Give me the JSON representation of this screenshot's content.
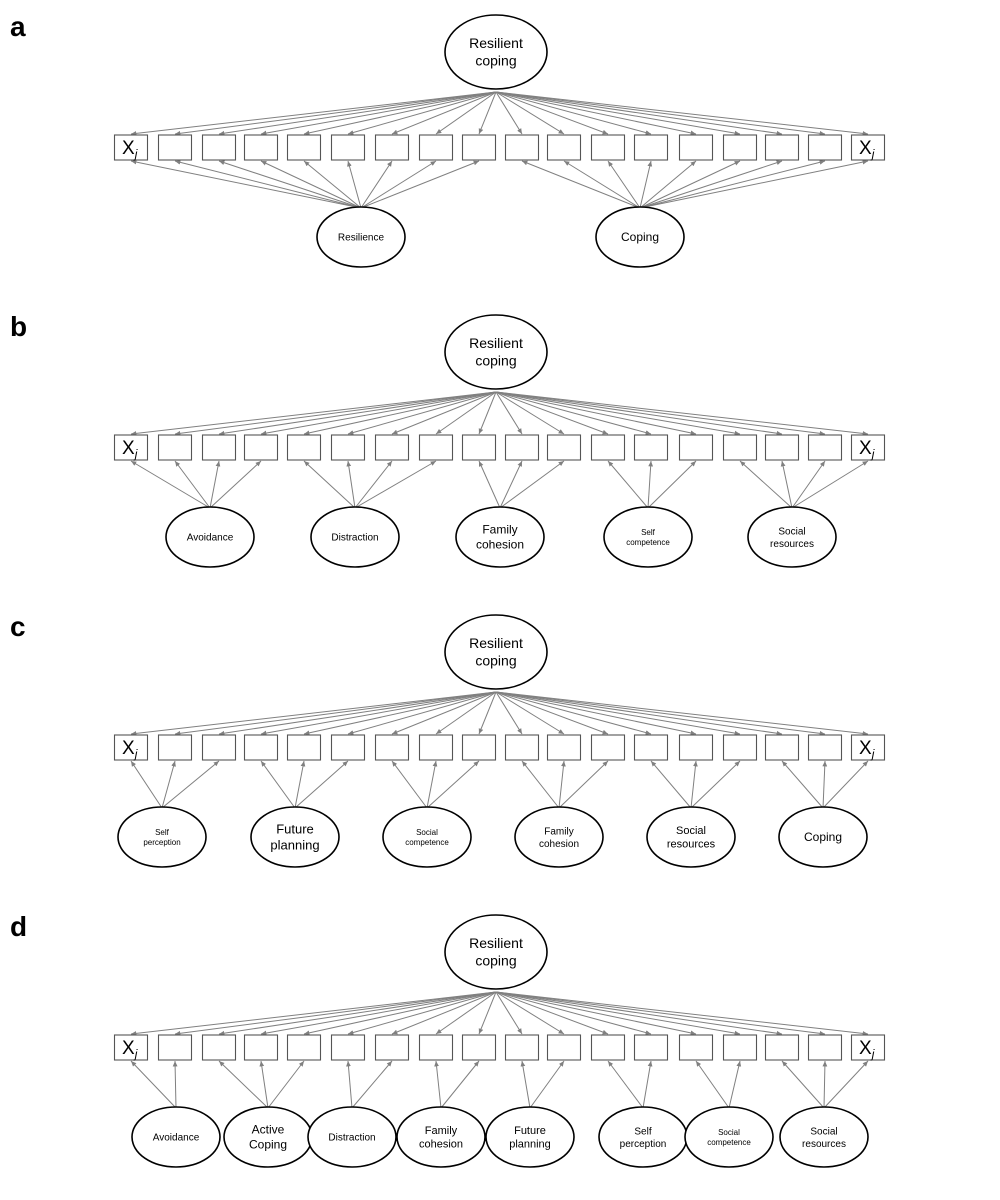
{
  "panels": [
    {
      "label": "a",
      "top": {
        "lines": [
          "Resilient",
          "coping"
        ]
      },
      "indicator_label": "X",
      "indicator_subscript": "j",
      "factors": [
        {
          "lines": [
            "Resilience"
          ],
          "items": [
            0,
            1,
            2,
            3,
            4,
            5,
            6,
            7,
            8
          ]
        },
        {
          "lines": [
            "Coping"
          ],
          "items": [
            9,
            10,
            11,
            12,
            13,
            14,
            15,
            16,
            17
          ]
        }
      ]
    },
    {
      "label": "b",
      "top": {
        "lines": [
          "Resilient",
          "coping"
        ]
      },
      "indicator_label": "X",
      "indicator_subscript": "j",
      "factors": [
        {
          "lines": [
            "Avoidance"
          ],
          "items": [
            0,
            1,
            2,
            3
          ]
        },
        {
          "lines": [
            "Distraction"
          ],
          "items": [
            4,
            5,
            6,
            7
          ]
        },
        {
          "lines": [
            "Family",
            "cohesion"
          ],
          "items": [
            8,
            9,
            10
          ]
        },
        {
          "lines": [
            "Self",
            "competence"
          ],
          "items": [
            11,
            12,
            13
          ]
        },
        {
          "lines": [
            "Social",
            "resources"
          ],
          "items": [
            14,
            15,
            16,
            17
          ]
        }
      ]
    },
    {
      "label": "c",
      "top": {
        "lines": [
          "Resilient",
          "coping"
        ]
      },
      "indicator_label": "X",
      "indicator_subscript": "j",
      "factors": [
        {
          "lines": [
            "Self",
            "perception"
          ],
          "items": [
            0,
            1,
            2
          ]
        },
        {
          "lines": [
            "Future",
            "planning"
          ],
          "items": [
            3,
            4,
            5
          ]
        },
        {
          "lines": [
            "Social",
            "competence"
          ],
          "items": [
            6,
            7,
            8
          ]
        },
        {
          "lines": [
            "Family",
            "cohesion"
          ],
          "items": [
            9,
            10,
            11
          ]
        },
        {
          "lines": [
            "Social",
            "resources"
          ],
          "items": [
            12,
            13,
            14
          ]
        },
        {
          "lines": [
            "Coping"
          ],
          "items": [
            15,
            16,
            17
          ]
        }
      ]
    },
    {
      "label": "d",
      "top": {
        "lines": [
          "Resilient",
          "coping"
        ]
      },
      "indicator_label": "X",
      "indicator_subscript": "j",
      "factors": [
        {
          "lines": [
            "Avoidance"
          ],
          "items": [
            0,
            1
          ]
        },
        {
          "lines": [
            "Active",
            "Coping"
          ],
          "items": [
            2,
            3,
            4
          ]
        },
        {
          "lines": [
            "Distraction"
          ],
          "items": [
            5,
            6
          ]
        },
        {
          "lines": [
            "Family",
            "cohesion"
          ],
          "items": [
            7,
            8
          ]
        },
        {
          "lines": [
            "Future",
            "planning"
          ],
          "items": [
            9,
            10
          ]
        },
        {
          "lines": [
            "Self",
            "perception"
          ],
          "items": [
            11,
            12
          ]
        },
        {
          "lines": [
            "Social",
            "competence"
          ],
          "items": [
            13,
            14
          ]
        },
        {
          "lines": [
            "Social",
            "resources"
          ],
          "items": [
            15,
            16,
            17
          ]
        }
      ]
    }
  ]
}
